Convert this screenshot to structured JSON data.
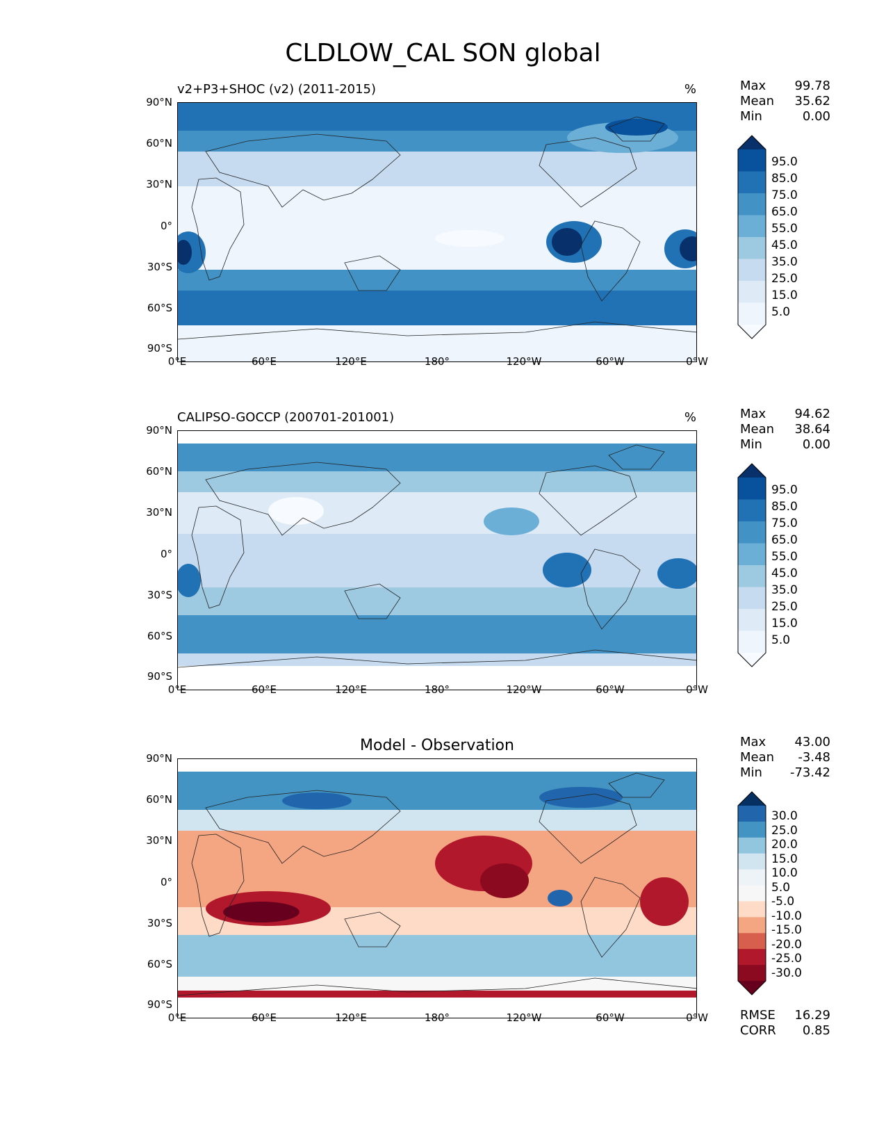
{
  "title": "CLDLOW_CAL SON global",
  "axes": {
    "lat_labels": [
      "90°N",
      "60°N",
      "30°N",
      "0°",
      "30°S",
      "60°S",
      "90°S"
    ],
    "lon_labels": [
      "0°E",
      "60°E",
      "120°E",
      "180°",
      "120°W",
      "60°W",
      "0°W"
    ]
  },
  "panels": [
    {
      "name": "test",
      "title": "v2+P3+SHOC (v2) (2011-2015)",
      "units": "%",
      "stats": {
        "max_label": "Max",
        "max": "99.78",
        "mean_label": "Mean",
        "mean": "35.62",
        "min_label": "Min",
        "min": "0.00"
      },
      "colorbar": {
        "labels": [
          "95.0",
          "85.0",
          "75.0",
          "65.0",
          "55.0",
          "45.0",
          "35.0",
          "25.0",
          "15.0",
          "5.0"
        ],
        "colors": [
          "#08306b",
          "#08519c",
          "#2171b5",
          "#4292c6",
          "#6baed6",
          "#9ecae1",
          "#c6dbef",
          "#deebf7",
          "#eef5fc",
          "#f7fbff"
        ]
      }
    },
    {
      "name": "reference",
      "title": "CALIPSO-GOCCP (200701-201001)",
      "units": "%",
      "stats": {
        "max_label": "Max",
        "max": "94.62",
        "mean_label": "Mean",
        "mean": "38.64",
        "min_label": "Min",
        "min": "0.00"
      },
      "colorbar": {
        "labels": [
          "95.0",
          "85.0",
          "75.0",
          "65.0",
          "55.0",
          "45.0",
          "35.0",
          "25.0",
          "15.0",
          "5.0"
        ],
        "colors": [
          "#08306b",
          "#08519c",
          "#2171b5",
          "#4292c6",
          "#6baed6",
          "#9ecae1",
          "#c6dbef",
          "#deebf7",
          "#eef5fc",
          "#f7fbff"
        ]
      }
    },
    {
      "name": "diff",
      "title": "Model - Observation",
      "stats": {
        "max_label": "Max",
        "max": "43.00",
        "mean_label": "Mean",
        "mean": "-3.48",
        "min_label": "Min",
        "min": "-73.42"
      },
      "colorbar": {
        "labels": [
          "30.0",
          "25.0",
          "20.0",
          "15.0",
          "10.0",
          "5.0",
          "-5.0",
          "-10.0",
          "-15.0",
          "-20.0",
          "-25.0",
          "-30.0"
        ],
        "colors": [
          "#053061",
          "#2166ac",
          "#4393c3",
          "#92c5de",
          "#d1e5f0",
          "#eef3f7",
          "#f7f7f7",
          "#fddbc7",
          "#f4a582",
          "#d6604d",
          "#b2182b",
          "#8b0a1f",
          "#67001f"
        ]
      },
      "metrics": {
        "rmse_label": "RMSE",
        "rmse": "16.29",
        "corr_label": "CORR",
        "corr": "0.85"
      }
    }
  ]
}
